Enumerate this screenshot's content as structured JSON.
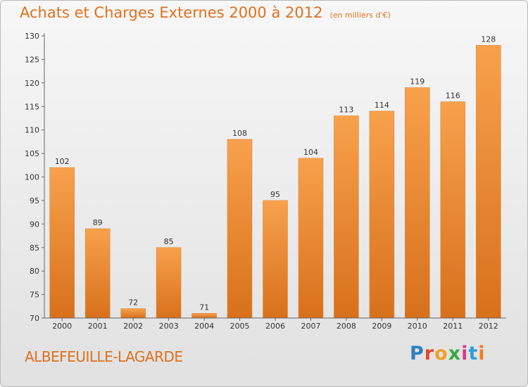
{
  "header": {
    "title": "Achats et Charges Externes 2000 à 2012",
    "subtitle": "(en milliers d'€)"
  },
  "footer": {
    "commune": "ALBEFEUILLE-LAGARDE",
    "logo": "Proxiti"
  },
  "colors": {
    "bar_top": "#f7a14c",
    "bar_bottom": "#d8701b",
    "accent": "#e0701c"
  },
  "chart_data": {
    "type": "bar",
    "title": "Achats et Charges Externes 2000 à 2012",
    "subtitle": "(en milliers d'€)",
    "xlabel": "",
    "ylabel": "",
    "categories": [
      "2000",
      "2001",
      "2002",
      "2003",
      "2004",
      "2005",
      "2006",
      "2007",
      "2008",
      "2009",
      "2010",
      "2011",
      "2012"
    ],
    "values": [
      102,
      89,
      72,
      85,
      71,
      108,
      95,
      104,
      113,
      114,
      119,
      116,
      128
    ],
    "ylim": [
      70,
      130
    ],
    "yticks": [
      70,
      75,
      80,
      85,
      90,
      95,
      100,
      105,
      110,
      115,
      120,
      125,
      130
    ],
    "grid": false,
    "legend": "none"
  }
}
